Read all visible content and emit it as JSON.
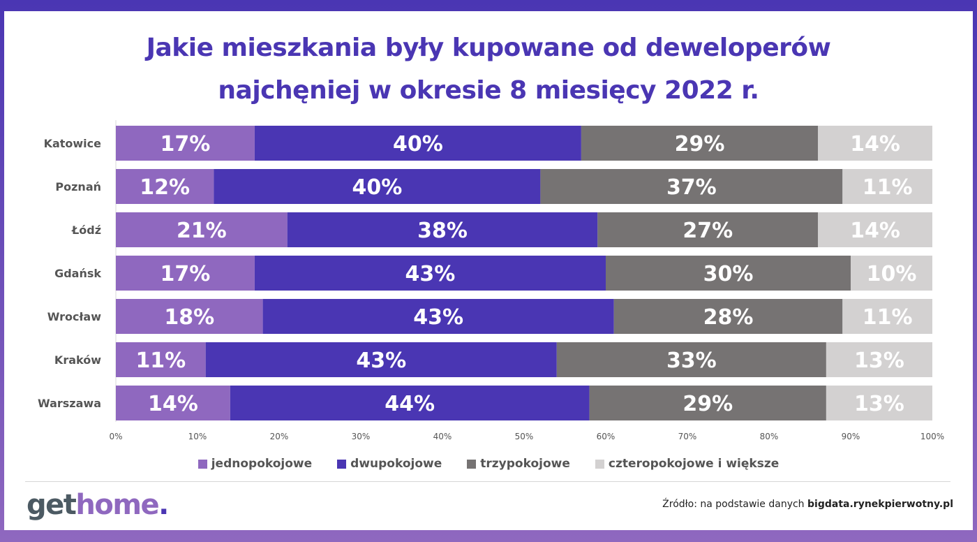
{
  "chart_data": {
    "type": "bar",
    "orientation": "horizontal",
    "stacked": true,
    "title": "Jakie mieszkania były kupowane od deweloperów najchęniej w okresie 8 miesięcy 2022 r.",
    "title_lines": [
      "Jakie mieszkania były kupowane od deweloperów",
      "najchęniej w okresie 8 miesięcy 2022 r."
    ],
    "categories": [
      "Katowice",
      "Poznań",
      "Łódź",
      "Gdańsk",
      "Wrocław",
      "Kraków",
      "Warszawa"
    ],
    "series": [
      {
        "name": "jednopokojowe",
        "color": "#8f68bf",
        "values": [
          17,
          12,
          21,
          17,
          18,
          11,
          14
        ]
      },
      {
        "name": "dwupokojowe",
        "color": "#4a36b3",
        "values": [
          40,
          40,
          38,
          43,
          43,
          43,
          44
        ]
      },
      {
        "name": "trzypokojowe",
        "color": "#767373",
        "values": [
          29,
          37,
          27,
          30,
          28,
          33,
          29
        ]
      },
      {
        "name": "czteropokojowe i większe",
        "color": "#d3d1d1",
        "values": [
          14,
          11,
          14,
          10,
          11,
          13,
          13
        ]
      }
    ],
    "xlim": [
      0,
      100
    ],
    "x_ticks": [
      "0%",
      "10%",
      "20%",
      "30%",
      "40%",
      "50%",
      "60%",
      "70%",
      "80%",
      "90%",
      "100%"
    ],
    "grid": false,
    "legend_position": "bottom",
    "data_labels": true
  },
  "footer": {
    "logo": "gethome.",
    "source_prefix": "Źródło: na podstawie danych ",
    "source_bold": "bigdata.rynekpierwotny.pl"
  }
}
